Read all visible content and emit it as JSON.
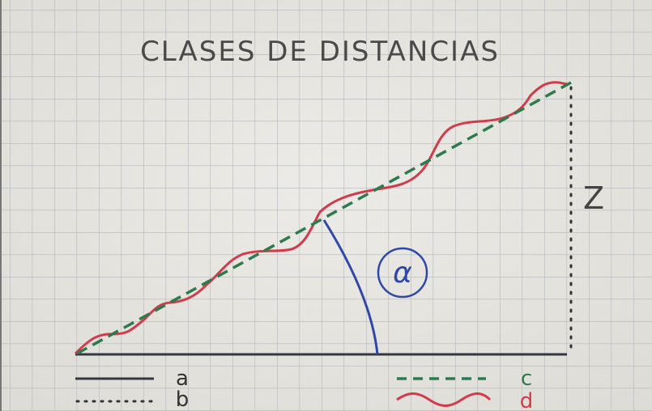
{
  "title": "CLASES DE DISTANCIAS",
  "labels": {
    "z": "Z",
    "alpha": "α"
  },
  "legend": [
    {
      "label": "a"
    },
    {
      "label": "b"
    },
    {
      "label": "c"
    },
    {
      "label": "d"
    }
  ]
}
